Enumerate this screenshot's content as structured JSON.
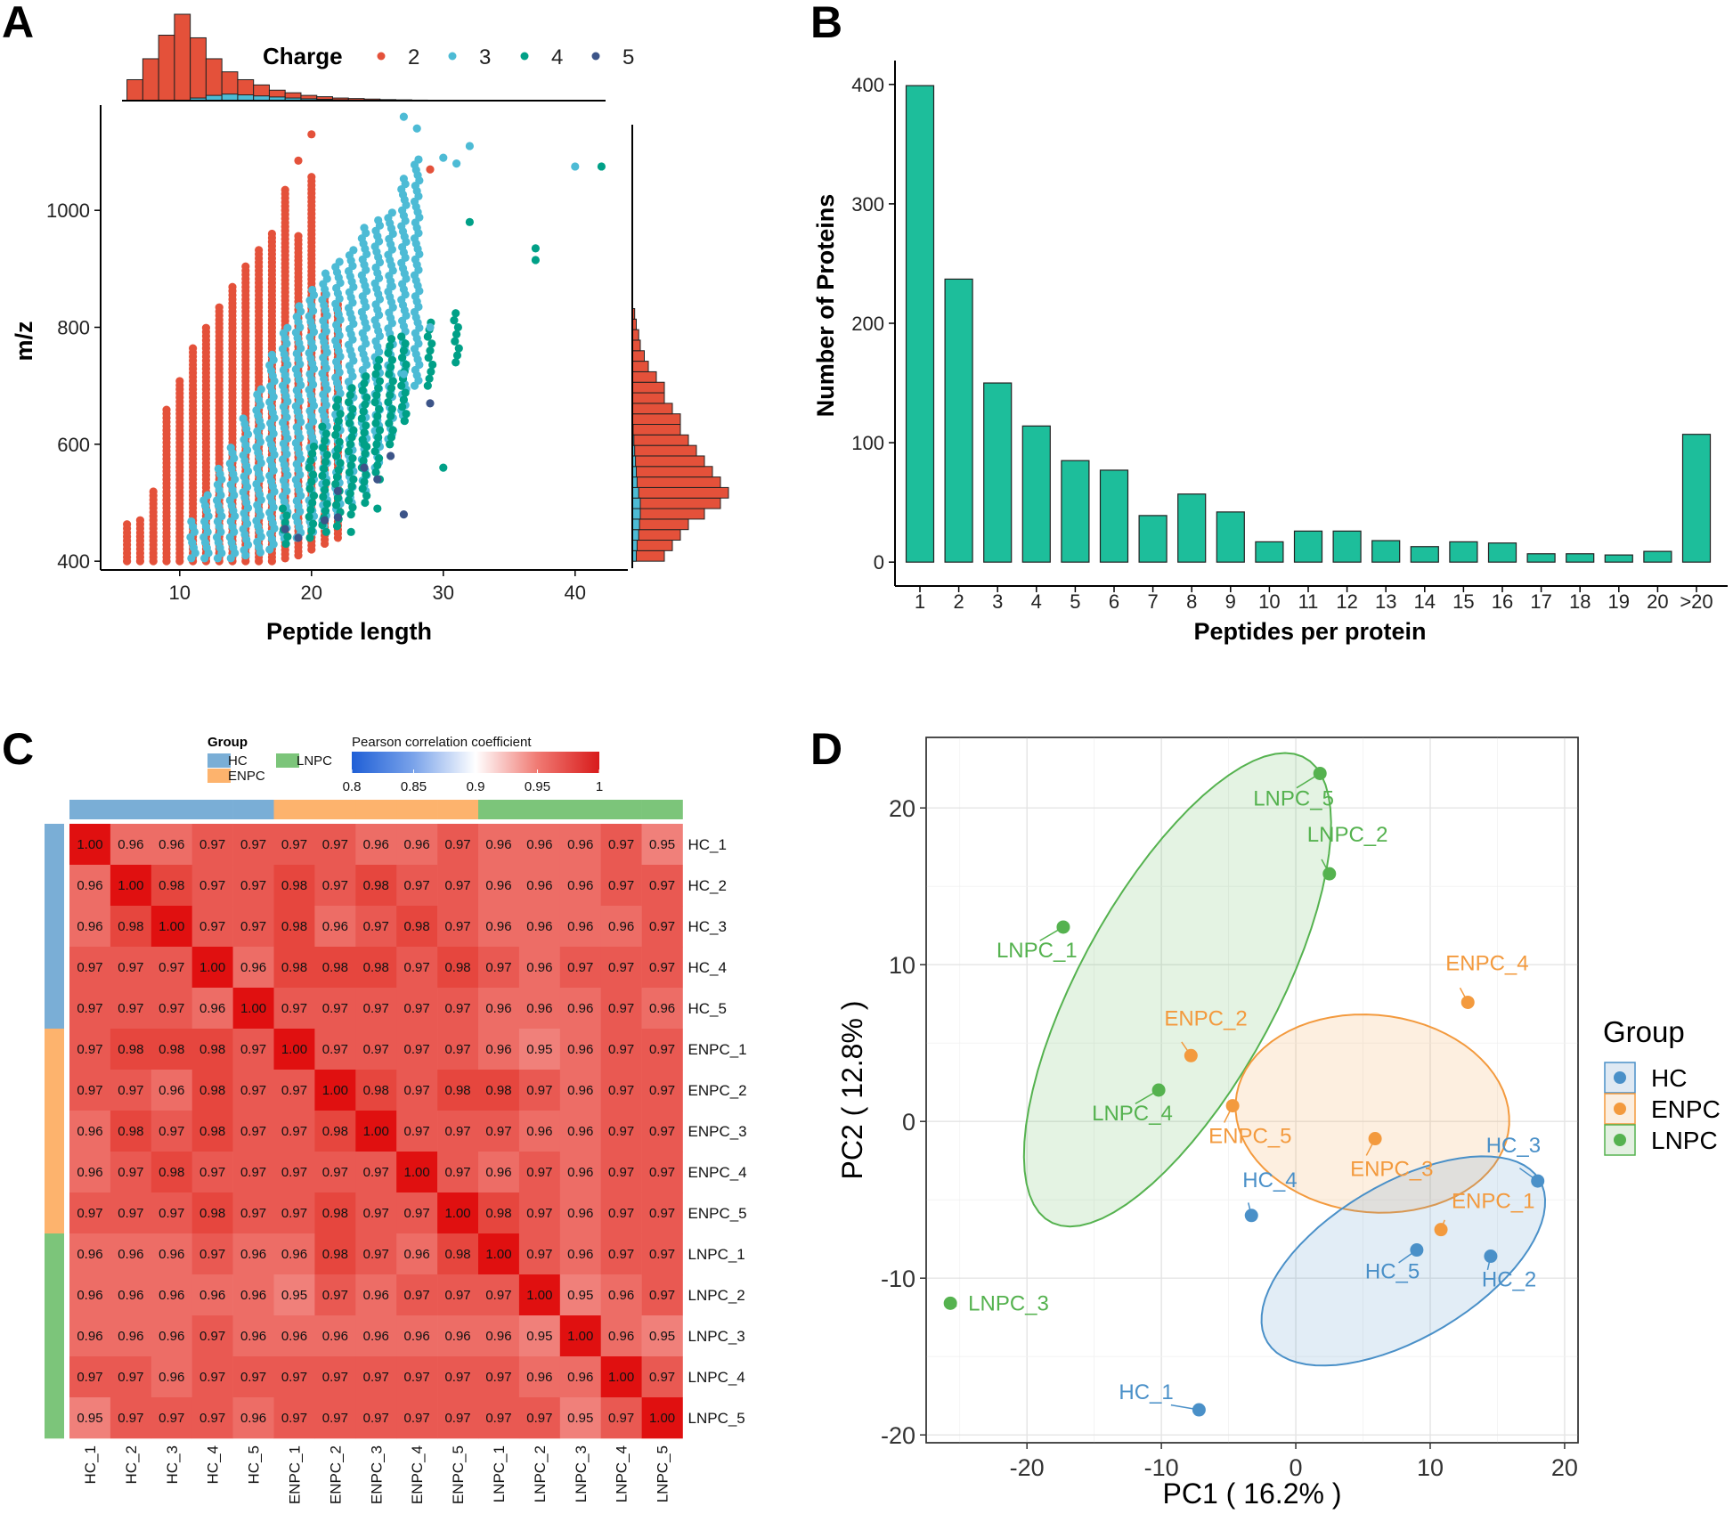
{
  "panels": {
    "a": "A",
    "b": "B",
    "c": "C",
    "d": "D"
  },
  "chart_data": [
    {
      "panel": "A",
      "type": "scatter",
      "xlabel": "Peptide length",
      "ylabel": "m/z",
      "xticks": [
        10,
        20,
        30,
        40
      ],
      "yticks": [
        400,
        600,
        800,
        1000
      ],
      "xlim": [
        4,
        44
      ],
      "ylim": [
        385,
        1180
      ],
      "legend": {
        "title": "Charge",
        "items": [
          {
            "label": "2",
            "color": "#E4513A"
          },
          {
            "label": "3",
            "color": "#4DBBD5"
          },
          {
            "label": "4",
            "color": "#00A087"
          },
          {
            "label": "5",
            "color": "#3C5488"
          }
        ]
      },
      "charge2_columns": [
        [
          6,
          400,
          465
        ],
        [
          7,
          400,
          470
        ],
        [
          8,
          400,
          520
        ],
        [
          9,
          400,
          660
        ],
        [
          10,
          400,
          710
        ],
        [
          11,
          400,
          770
        ],
        [
          12,
          400,
          800
        ],
        [
          13,
          400,
          840
        ],
        [
          14,
          400,
          870
        ],
        [
          15,
          400,
          910
        ],
        [
          16,
          400,
          935
        ],
        [
          17,
          400,
          960
        ],
        [
          18,
          405,
          1035
        ],
        [
          19,
          410,
          960
        ],
        [
          20,
          420,
          1060
        ],
        [
          21,
          430,
          860
        ],
        [
          22,
          440,
          840
        ]
      ],
      "charge3_columns": [
        [
          11,
          405,
          470
        ],
        [
          12,
          405,
          520
        ],
        [
          13,
          405,
          560
        ],
        [
          14,
          405,
          600
        ],
        [
          15,
          410,
          650
        ],
        [
          16,
          415,
          700
        ],
        [
          17,
          420,
          760
        ],
        [
          18,
          430,
          800
        ],
        [
          19,
          440,
          840
        ],
        [
          20,
          450,
          870
        ],
        [
          21,
          460,
          900
        ],
        [
          22,
          480,
          920
        ],
        [
          23,
          500,
          940
        ],
        [
          24,
          520,
          970
        ],
        [
          25,
          560,
          990
        ],
        [
          26,
          600,
          1000
        ],
        [
          27,
          640,
          1060
        ],
        [
          28,
          700,
          1090
        ]
      ],
      "charge4_columns": [
        [
          18,
          430,
          500
        ],
        [
          20,
          440,
          600
        ],
        [
          21,
          450,
          640
        ],
        [
          22,
          460,
          680
        ],
        [
          23,
          480,
          700
        ],
        [
          24,
          500,
          720
        ],
        [
          25,
          540,
          750
        ],
        [
          26,
          600,
          780
        ],
        [
          27,
          640,
          790
        ],
        [
          29,
          700,
          810
        ],
        [
          31,
          740,
          830
        ]
      ],
      "extra_points": [
        {
          "x": 20,
          "y": 1130,
          "c": 2
        },
        {
          "x": 19,
          "y": 1085,
          "c": 2
        },
        {
          "x": 29,
          "y": 1070,
          "c": 2
        },
        {
          "x": 27,
          "y": 1160,
          "c": 3
        },
        {
          "x": 28,
          "y": 1140,
          "c": 3
        },
        {
          "x": 32,
          "y": 1110,
          "c": 3
        },
        {
          "x": 30,
          "y": 1090,
          "c": 3
        },
        {
          "x": 31,
          "y": 1080,
          "c": 3
        },
        {
          "x": 40,
          "y": 1075,
          "c": 3
        },
        {
          "x": 29,
          "y": 800,
          "c": 3
        },
        {
          "x": 27,
          "y": 720,
          "c": 3
        },
        {
          "x": 26,
          "y": 870,
          "c": 3
        },
        {
          "x": 42,
          "y": 1075,
          "c": 4
        },
        {
          "x": 37,
          "y": 935,
          "c": 4
        },
        {
          "x": 37,
          "y": 915,
          "c": 4
        },
        {
          "x": 32,
          "y": 980,
          "c": 4
        },
        {
          "x": 30,
          "y": 560,
          "c": 4
        },
        {
          "x": 25,
          "y": 490,
          "c": 4
        },
        {
          "x": 23,
          "y": 450,
          "c": 4
        },
        {
          "x": 24,
          "y": 600,
          "c": 4
        },
        {
          "x": 29,
          "y": 670,
          "c": 5
        },
        {
          "x": 27,
          "y": 480,
          "c": 5
        },
        {
          "x": 26,
          "y": 580,
          "c": 5
        },
        {
          "x": 24,
          "y": 560,
          "c": 5
        },
        {
          "x": 22,
          "y": 475,
          "c": 5
        },
        {
          "x": 21,
          "y": 470,
          "c": 5
        },
        {
          "x": 19,
          "y": 440,
          "c": 5
        },
        {
          "x": 18,
          "y": 455,
          "c": 5
        },
        {
          "x": 25,
          "y": 540,
          "c": 5
        },
        {
          "x": 22,
          "y": 520,
          "c": 5
        }
      ],
      "top_hist": {
        "bin_start": 6,
        "bin_width": 1.2,
        "charge2": [
          8,
          16,
          25,
          33,
          24,
          16,
          11,
          8,
          6,
          4,
          3,
          2,
          1.5,
          1,
          0.8,
          0.6,
          0.4,
          0.3,
          0.2,
          0.1
        ],
        "charge3": [
          0,
          0,
          0,
          0,
          1,
          2,
          2.5,
          2.2,
          1.8,
          1.4,
          1,
          0.7,
          0.5,
          0.3,
          0.2,
          0.1,
          0.1,
          0,
          0,
          0
        ]
      },
      "right_hist": {
        "bin_start": 400,
        "bin_width": 18,
        "charge2": [
          4,
          5,
          6,
          7,
          9,
          11,
          12,
          11,
          10,
          9,
          8,
          7,
          6,
          6,
          5,
          4,
          4,
          3,
          2,
          1.5,
          1,
          0.8,
          0.5,
          0.3
        ],
        "charge3": [
          0.5,
          0.6,
          0.8,
          0.9,
          1,
          1,
          0.8,
          0.6,
          0.5,
          0.4,
          0.3,
          0.2,
          0.1,
          0,
          0,
          0,
          0,
          0,
          0,
          0,
          0,
          0,
          0,
          0
        ]
      }
    },
    {
      "panel": "B",
      "type": "bar",
      "xlabel": "Peptides per protein",
      "ylabel": "Number of Proteins",
      "categories": [
        "1",
        "2",
        "3",
        "4",
        "5",
        "6",
        "7",
        "8",
        "9",
        "10",
        "11",
        "12",
        "13",
        "14",
        "15",
        "16",
        "17",
        "18",
        "19",
        "20",
        ">20"
      ],
      "values": [
        399,
        237,
        150,
        114,
        85,
        77,
        39,
        57,
        42,
        17,
        26,
        26,
        18,
        13,
        17,
        16,
        7,
        7,
        6,
        9,
        107
      ],
      "yticks": [
        0,
        100,
        200,
        300,
        400
      ],
      "ylim": [
        -20,
        420
      ],
      "color": "#1DBE9B"
    },
    {
      "panel": "C",
      "type": "heatmap",
      "labels": [
        "HC_1",
        "HC_2",
        "HC_3",
        "HC_4",
        "HC_5",
        "ENPC_1",
        "ENPC_2",
        "ENPC_3",
        "ENPC_4",
        "ENPC_5",
        "LNPC_1",
        "LNPC_2",
        "LNPC_3",
        "LNPC_4",
        "LNPC_5"
      ],
      "groups": [
        "HC",
        "HC",
        "HC",
        "HC",
        "HC",
        "ENPC",
        "ENPC",
        "ENPC",
        "ENPC",
        "ENPC",
        "LNPC",
        "LNPC",
        "LNPC",
        "LNPC",
        "LNPC"
      ],
      "matrix": [
        [
          "1.00",
          "0.96",
          "0.96",
          "0.97",
          "0.97",
          "0.97",
          "0.97",
          "0.96",
          "0.96",
          "0.97",
          "0.96",
          "0.96",
          "0.96",
          "0.97",
          "0.95"
        ],
        [
          "0.96",
          "1.00",
          "0.98",
          "0.97",
          "0.97",
          "0.98",
          "0.97",
          "0.98",
          "0.97",
          "0.97",
          "0.96",
          "0.96",
          "0.96",
          "0.97",
          "0.97"
        ],
        [
          "0.96",
          "0.98",
          "1.00",
          "0.97",
          "0.97",
          "0.98",
          "0.96",
          "0.97",
          "0.98",
          "0.97",
          "0.96",
          "0.96",
          "0.96",
          "0.96",
          "0.97"
        ],
        [
          "0.97",
          "0.97",
          "0.97",
          "1.00",
          "0.96",
          "0.98",
          "0.98",
          "0.98",
          "0.97",
          "0.98",
          "0.97",
          "0.96",
          "0.97",
          "0.97",
          "0.97"
        ],
        [
          "0.97",
          "0.97",
          "0.97",
          "0.96",
          "1.00",
          "0.97",
          "0.97",
          "0.97",
          "0.97",
          "0.97",
          "0.96",
          "0.96",
          "0.96",
          "0.97",
          "0.96"
        ],
        [
          "0.97",
          "0.98",
          "0.98",
          "0.98",
          "0.97",
          "1.00",
          "0.97",
          "0.97",
          "0.97",
          "0.97",
          "0.96",
          "0.95",
          "0.96",
          "0.97",
          "0.97"
        ],
        [
          "0.97",
          "0.97",
          "0.96",
          "0.98",
          "0.97",
          "0.97",
          "1.00",
          "0.98",
          "0.97",
          "0.98",
          "0.98",
          "0.97",
          "0.96",
          "0.97",
          "0.97"
        ],
        [
          "0.96",
          "0.98",
          "0.97",
          "0.98",
          "0.97",
          "0.97",
          "0.98",
          "1.00",
          "0.97",
          "0.97",
          "0.97",
          "0.96",
          "0.96",
          "0.97",
          "0.97"
        ],
        [
          "0.96",
          "0.97",
          "0.98",
          "0.97",
          "0.97",
          "0.97",
          "0.97",
          "0.97",
          "1.00",
          "0.97",
          "0.96",
          "0.97",
          "0.96",
          "0.97",
          "0.97"
        ],
        [
          "0.97",
          "0.97",
          "0.97",
          "0.98",
          "0.97",
          "0.97",
          "0.98",
          "0.97",
          "0.97",
          "1.00",
          "0.98",
          "0.97",
          "0.96",
          "0.97",
          "0.97"
        ],
        [
          "0.96",
          "0.96",
          "0.96",
          "0.97",
          "0.96",
          "0.96",
          "0.98",
          "0.97",
          "0.96",
          "0.98",
          "1.00",
          "0.97",
          "0.96",
          "0.97",
          "0.97"
        ],
        [
          "0.96",
          "0.96",
          "0.96",
          "0.96",
          "0.96",
          "0.95",
          "0.97",
          "0.96",
          "0.97",
          "0.97",
          "0.97",
          "1.00",
          "0.95",
          "0.96",
          "0.97"
        ],
        [
          "0.96",
          "0.96",
          "0.96",
          "0.97",
          "0.96",
          "0.96",
          "0.96",
          "0.96",
          "0.96",
          "0.96",
          "0.96",
          "0.95",
          "1.00",
          "0.96",
          "0.95"
        ],
        [
          "0.97",
          "0.97",
          "0.96",
          "0.97",
          "0.97",
          "0.97",
          "0.97",
          "0.97",
          "0.97",
          "0.97",
          "0.97",
          "0.96",
          "0.96",
          "1.00",
          "0.97"
        ],
        [
          "0.95",
          "0.97",
          "0.97",
          "0.97",
          "0.96",
          "0.97",
          "0.97",
          "0.97",
          "0.97",
          "0.97",
          "0.97",
          "0.97",
          "0.95",
          "0.97",
          "1.00"
        ]
      ],
      "group_legend": {
        "title": "Group",
        "items": [
          {
            "label": "HC",
            "color": "#7AAED6"
          },
          {
            "label": "ENPC",
            "color": "#FDB36D"
          },
          {
            "label": "LNPC",
            "color": "#7CC57A"
          }
        ]
      },
      "colorbar": {
        "title": "Pearson correlation coefficient",
        "ticks": [
          "0.8",
          "0.85",
          "0.9",
          "0.95",
          "1"
        ],
        "range": [
          0.8,
          1
        ]
      }
    },
    {
      "panel": "D",
      "type": "scatter",
      "xlabel": "PC1 ( 16.2% )",
      "ylabel": "PC2 ( 12.8% )",
      "xticks": [
        -20,
        -10,
        0,
        10,
        20
      ],
      "yticks": [
        -20,
        -10,
        0,
        10,
        20
      ],
      "xlim": [
        -27.5,
        21
      ],
      "ylim": [
        -20.5,
        24.5
      ],
      "legend": {
        "title": "Group",
        "items": [
          {
            "label": "HC",
            "color": "#4A90C8"
          },
          {
            "label": "ENPC",
            "color": "#F39A3E"
          },
          {
            "label": "LNPC",
            "color": "#55B24F"
          }
        ]
      },
      "points": [
        {
          "label": "HC_1",
          "group": "HC",
          "x": -7.2,
          "y": -18.4
        },
        {
          "label": "HC_2",
          "group": "HC",
          "x": 14.5,
          "y": -8.6
        },
        {
          "label": "HC_3",
          "group": "HC",
          "x": 18.0,
          "y": -3.8
        },
        {
          "label": "HC_4",
          "group": "HC",
          "x": -3.3,
          "y": -6.0
        },
        {
          "label": "HC_5",
          "group": "HC",
          "x": 9.0,
          "y": -8.2
        },
        {
          "label": "ENPC_1",
          "group": "ENPC",
          "x": 10.8,
          "y": -6.9
        },
        {
          "label": "ENPC_2",
          "group": "ENPC",
          "x": -7.8,
          "y": 4.2
        },
        {
          "label": "ENPC_3",
          "group": "ENPC",
          "x": 5.9,
          "y": -1.1
        },
        {
          "label": "ENPC_4",
          "group": "ENPC",
          "x": 12.8,
          "y": 7.6
        },
        {
          "label": "ENPC_5",
          "group": "ENPC",
          "x": -4.7,
          "y": 1.0
        },
        {
          "label": "LNPC_1",
          "group": "LNPC",
          "x": -17.3,
          "y": 12.4
        },
        {
          "label": "LNPC_2",
          "group": "LNPC",
          "x": 2.5,
          "y": 15.8
        },
        {
          "label": "LNPC_3",
          "group": "LNPC",
          "x": -25.7,
          "y": -11.6
        },
        {
          "label": "LNPC_4",
          "group": "LNPC",
          "x": -10.2,
          "y": 2.0
        },
        {
          "label": "LNPC_5",
          "group": "LNPC",
          "x": 1.8,
          "y": 22.2
        }
      ],
      "ellipses": [
        {
          "group": "LNPC",
          "cx": -8.8,
          "cy": 8.4,
          "rx": 17.6,
          "ry": 7.0,
          "angle_deg": 56
        },
        {
          "group": "ENPC",
          "cx": 5.7,
          "cy": 0.5,
          "rx": 10.2,
          "ry": 6.3,
          "angle_deg": -4
        },
        {
          "group": "HC",
          "cx": 8.0,
          "cy": -8.9,
          "rx": 11.4,
          "ry": 5.1,
          "angle_deg": 25
        }
      ]
    }
  ]
}
